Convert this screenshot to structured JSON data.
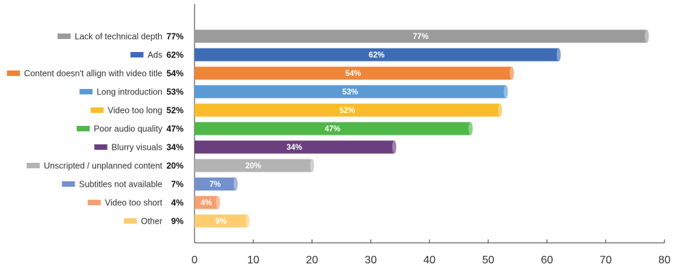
{
  "chart_data": {
    "type": "bar",
    "orientation": "horizontal",
    "title": "",
    "xlabel": "",
    "ylabel": "",
    "xlim": [
      0,
      80
    ],
    "xticks": [
      0,
      10,
      20,
      30,
      40,
      50,
      60,
      70,
      80
    ],
    "grid": false,
    "legend": "none",
    "categories": [
      "Lack of technical depth",
      "Ads",
      "Content doesn't allign with video title",
      "Long introduction",
      "Video too long",
      "Poor audio quality",
      "Blurry visuals",
      "Unscripted / unplanned content",
      "Subtitles not available",
      "Video too short",
      "Other"
    ],
    "values": [
      77,
      62,
      54,
      53,
      52,
      47,
      34,
      20,
      7,
      4,
      9
    ],
    "value_labels": [
      "77%",
      "62%",
      "54%",
      "53%",
      "52%",
      "47%",
      "34%",
      "20%",
      "7%",
      "4%",
      "9%"
    ],
    "colors": [
      "#9b9b9b",
      "#3f6db5",
      "#ef8538",
      "#5a9bd6",
      "#fbbc2a",
      "#4fb849",
      "#6a3f7d",
      "#b3b3b3",
      "#7391cc",
      "#f4a071",
      "#fdcd70"
    ]
  }
}
